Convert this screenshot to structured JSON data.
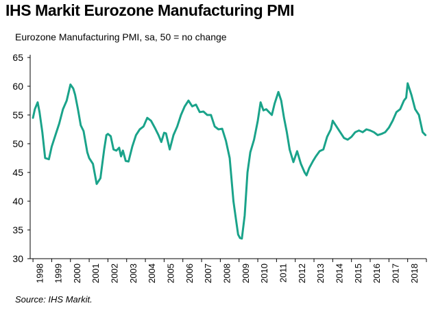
{
  "header": {
    "title": "IHS Markit Eurozone Manufacturing PMI"
  },
  "source": "Source: IHS Markit.",
  "colors": {
    "line": "#1aa38a",
    "axis": "#000000"
  },
  "chart_data": {
    "type": "line",
    "title": "IHS Markit Eurozone Manufacturing PMI",
    "subtitle": "Eurozone Manufacturing PMI, sa, 50 = no change",
    "xlabel": "",
    "ylabel": "",
    "ylim": [
      30,
      65
    ],
    "yticks": [
      30,
      35,
      40,
      45,
      50,
      55,
      60,
      65
    ],
    "xlim": [
      1997.85,
      2019.0
    ],
    "xticks": [
      "1998",
      "1999",
      "2000",
      "2001",
      "2002",
      "2003",
      "2004",
      "2005",
      "2006",
      "2007",
      "2008",
      "2009",
      "2010",
      "2011",
      "2012",
      "2013",
      "2014",
      "2015",
      "2016",
      "2017",
      "2018"
    ],
    "grid": false,
    "legend": "none",
    "series": [
      {
        "x": [
          1998.0,
          1998.1,
          1998.25,
          1998.35,
          1998.5,
          1998.65,
          1998.85,
          1999.0,
          1999.2,
          1999.4,
          1999.6,
          1999.8,
          2000.0,
          2000.15,
          2000.25,
          2000.4,
          2000.55,
          2000.7,
          2000.9,
          2001.0,
          2001.2,
          2001.4,
          2001.6,
          2001.8,
          2001.92,
          2002.0,
          2002.15,
          2002.3,
          2002.45,
          2002.6,
          2002.7,
          2002.8,
          2002.95,
          2003.1,
          2003.3,
          2003.5,
          2003.7,
          2003.9,
          2004.1,
          2004.3,
          2004.5,
          2004.7,
          2004.85,
          2005.0,
          2005.1,
          2005.3,
          2005.5,
          2005.7,
          2005.9,
          2006.1,
          2006.3,
          2006.5,
          2006.7,
          2006.9,
          2007.1,
          2007.3,
          2007.5,
          2007.7,
          2007.9,
          2008.1,
          2008.3,
          2008.5,
          2008.7,
          2008.85,
          2008.95,
          2009.05,
          2009.15,
          2009.3,
          2009.45,
          2009.6,
          2009.8,
          2010.0,
          2010.15,
          2010.3,
          2010.45,
          2010.6,
          2010.75,
          2010.9,
          2011.1,
          2011.25,
          2011.4,
          2011.55,
          2011.7,
          2011.9,
          2012.1,
          2012.3,
          2012.5,
          2012.6,
          2012.75,
          2012.95,
          2013.1,
          2013.3,
          2013.5,
          2013.7,
          2013.9,
          2014.0,
          2014.2,
          2014.4,
          2014.6,
          2014.8,
          2015.0,
          2015.2,
          2015.4,
          2015.6,
          2015.8,
          2016.0,
          2016.2,
          2016.4,
          2016.6,
          2016.8,
          2017.0,
          2017.2,
          2017.4,
          2017.6,
          2017.8,
          2017.92,
          2018.0,
          2018.2,
          2018.4,
          2018.6,
          2018.8,
          2018.95
        ],
        "y": [
          54.5,
          56.0,
          57.2,
          55.5,
          52.0,
          47.5,
          47.3,
          49.5,
          51.5,
          53.5,
          56.0,
          57.5,
          60.3,
          59.6,
          58.5,
          56.0,
          53.2,
          52.2,
          48.5,
          47.5,
          46.5,
          43.0,
          44.0,
          49.0,
          51.5,
          51.7,
          51.3,
          49.0,
          48.8,
          49.3,
          47.8,
          48.8,
          47.0,
          46.9,
          49.5,
          51.5,
          52.5,
          53.0,
          54.5,
          54.0,
          52.8,
          51.5,
          50.3,
          51.9,
          51.8,
          49.0,
          51.5,
          53.0,
          55.0,
          56.5,
          57.5,
          56.5,
          56.8,
          55.5,
          55.6,
          55.0,
          55.0,
          53.0,
          52.5,
          52.6,
          50.5,
          47.5,
          40.0,
          36.5,
          34.2,
          33.6,
          33.5,
          37.5,
          45.0,
          48.5,
          50.7,
          54.0,
          57.2,
          55.8,
          56.0,
          55.5,
          55.0,
          57.0,
          59.0,
          57.5,
          54.5,
          52.0,
          49.0,
          46.8,
          48.7,
          46.5,
          45.0,
          44.5,
          45.8,
          47.0,
          47.8,
          48.7,
          49.0,
          51.2,
          52.5,
          54.0,
          53.0,
          52.0,
          51.0,
          50.7,
          51.2,
          52.0,
          52.3,
          52.0,
          52.5,
          52.3,
          52.0,
          51.5,
          51.7,
          52.0,
          52.8,
          54.0,
          55.5,
          56.0,
          57.5,
          58.0,
          60.5,
          58.5,
          56.0,
          55.0,
          52.0,
          51.5
        ]
      }
    ]
  }
}
